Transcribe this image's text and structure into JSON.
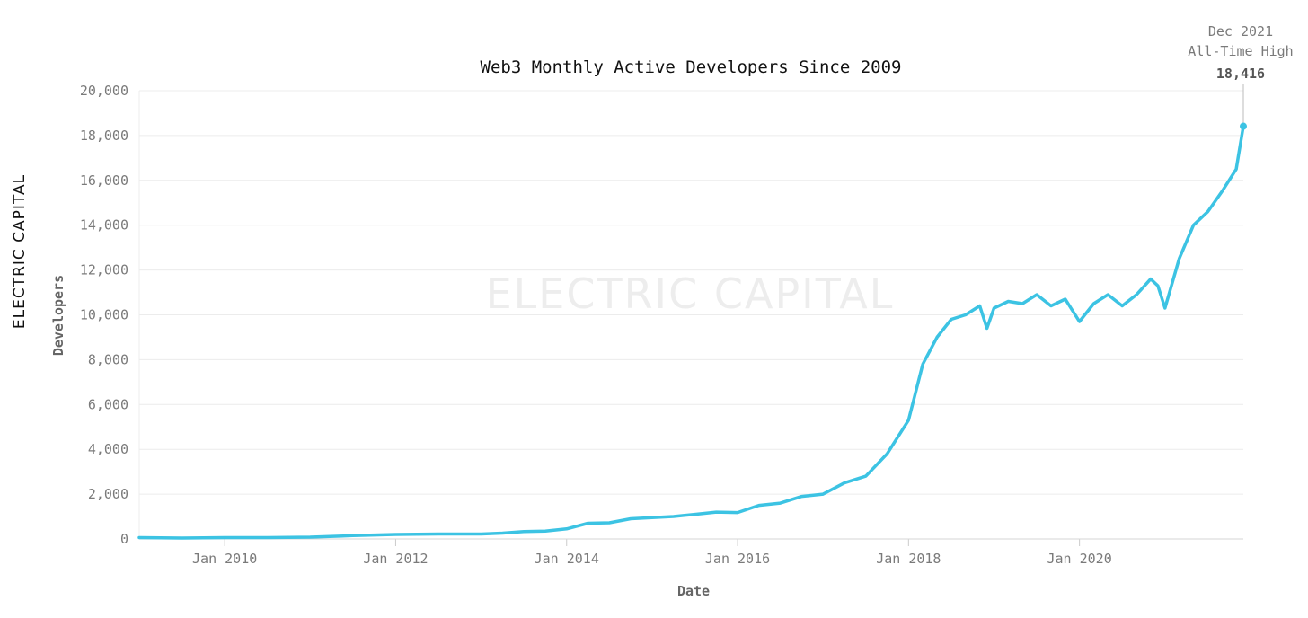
{
  "chart_data": {
    "type": "line",
    "title": "Web3 Monthly Active Developers Since 2009",
    "xlabel": "Date",
    "ylabel": "Developers",
    "ylim": [
      0,
      20000
    ],
    "xlim": [
      "2009-01",
      "2021-12"
    ],
    "yticks": [
      "0",
      "2,000",
      "4,000",
      "6,000",
      "8,000",
      "10,000",
      "12,000",
      "14,000",
      "16,000",
      "18,000",
      "20,000"
    ],
    "xticks": [
      {
        "date": "2010-01",
        "label": "Jan 2010"
      },
      {
        "date": "2012-01",
        "label": "Jan 2012"
      },
      {
        "date": "2014-01",
        "label": "Jan 2014"
      },
      {
        "date": "2016-01",
        "label": "Jan 2016"
      },
      {
        "date": "2018-01",
        "label": "Jan 2018"
      },
      {
        "date": "2020-01",
        "label": "Jan 2020"
      }
    ],
    "grid": true,
    "line_color": "#3cc3e3",
    "series": [
      {
        "x": [
          "2009-01",
          "2009-07",
          "2010-01",
          "2010-07",
          "2011-01",
          "2011-07",
          "2012-01",
          "2012-07",
          "2013-01",
          "2013-04",
          "2013-07",
          "2013-10",
          "2014-01",
          "2014-04",
          "2014-07",
          "2014-10",
          "2015-01",
          "2015-04",
          "2015-07",
          "2015-10",
          "2016-01",
          "2016-04",
          "2016-07",
          "2016-10",
          "2017-01",
          "2017-04",
          "2017-07",
          "2017-10",
          "2018-01",
          "2018-03",
          "2018-05",
          "2018-07",
          "2018-09",
          "2018-11",
          "2018-12",
          "2019-01",
          "2019-03",
          "2019-05",
          "2019-07",
          "2019-09",
          "2019-11",
          "2020-01",
          "2020-03",
          "2020-05",
          "2020-07",
          "2020-09",
          "2020-11",
          "2020-12",
          "2021-01",
          "2021-03",
          "2021-05",
          "2021-07",
          "2021-09",
          "2021-11",
          "2021-12"
        ],
        "values": [
          60,
          40,
          60,
          60,
          80,
          150,
          200,
          220,
          220,
          260,
          330,
          350,
          450,
          700,
          720,
          900,
          950,
          1000,
          1100,
          1200,
          1180,
          1500,
          1600,
          1900,
          2000,
          2500,
          2800,
          3800,
          5300,
          7800,
          9000,
          9800,
          10000,
          10400,
          9400,
          10300,
          10600,
          10500,
          10900,
          10400,
          10700,
          9700,
          10500,
          10900,
          10400,
          10900,
          11600,
          11300,
          10300,
          12500,
          14000,
          14600,
          15500,
          16500,
          18416
        ]
      }
    ],
    "annotation": {
      "line1": "Dec 2021",
      "line2": "All-Time High",
      "value": "18,416",
      "date": "2021-12",
      "y": 18416
    },
    "watermark": "ELECTRIC CAPITAL",
    "side_logo": "ELECTRIC CAPITAL"
  }
}
